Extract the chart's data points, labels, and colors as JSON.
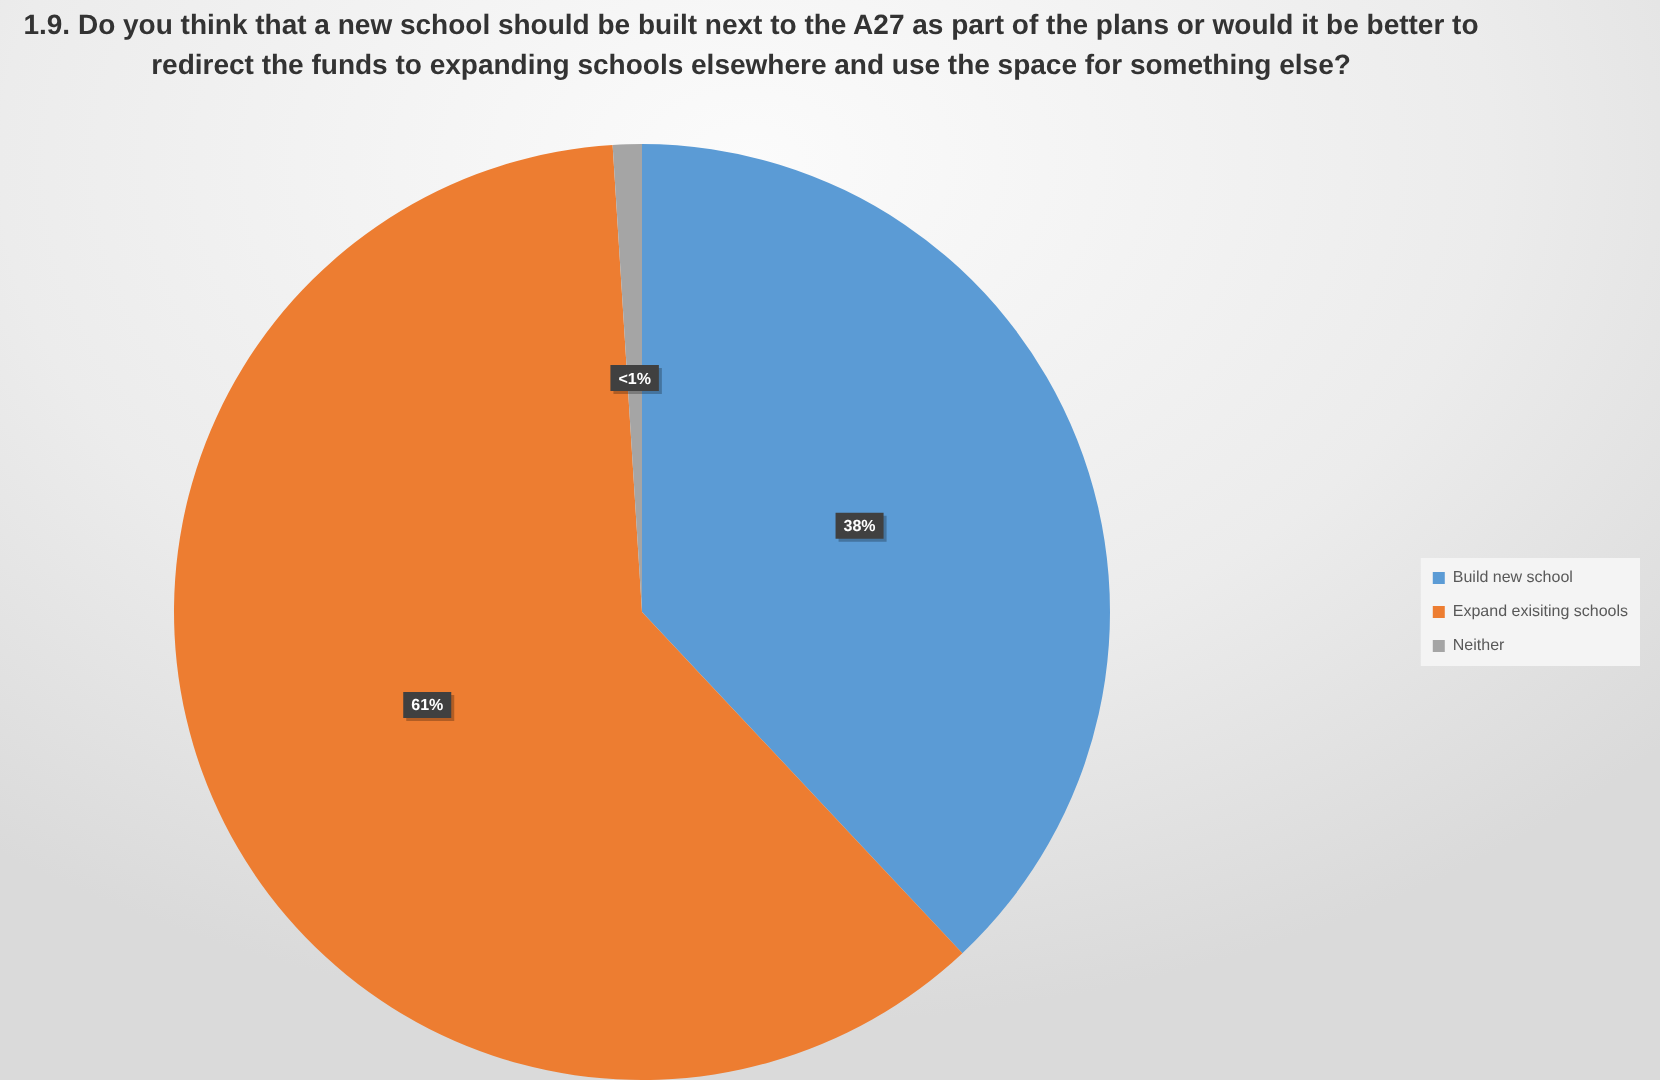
{
  "chart_data": {
    "type": "pie",
    "title": "1.9. Do you think that a new school should be built next to the A27 as part of the plans or would it be better to redirect the funds to expanding schools elsewhere and use the space for something else?",
    "categories": [
      "Build new school",
      "Expand exisiting schools",
      "Neither"
    ],
    "values": [
      38,
      61,
      1
    ],
    "colors": [
      "#5b9bd5",
      "#ed7d31",
      "#a5a5a5"
    ],
    "value_labels": [
      "38%",
      "61%",
      "<1%"
    ],
    "legend": "right"
  }
}
